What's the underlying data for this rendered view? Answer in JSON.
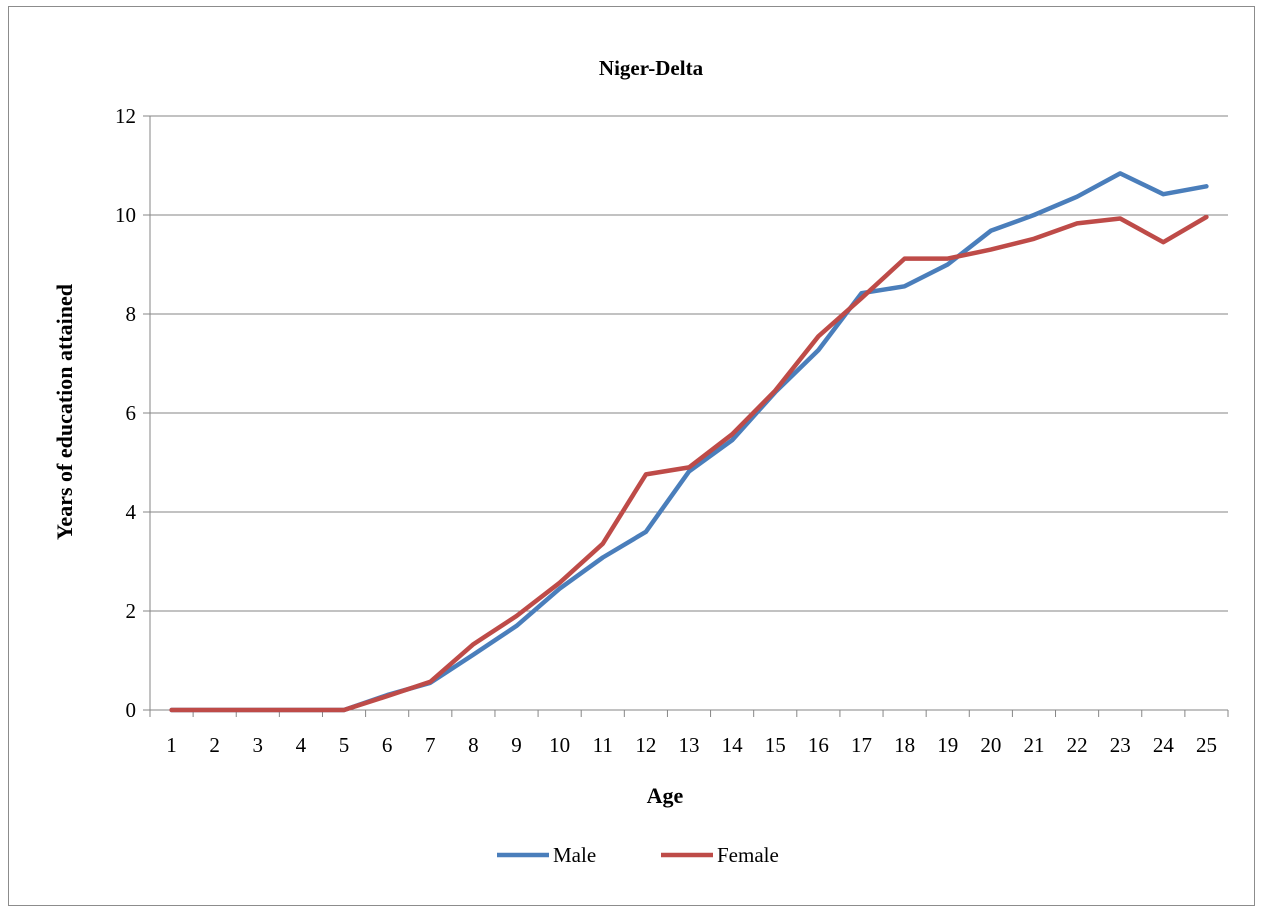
{
  "chart_data": {
    "type": "line",
    "title": "Niger-Delta",
    "xlabel": "Age",
    "ylabel": "Years of education attained",
    "x": [
      1,
      2,
      3,
      4,
      5,
      6,
      7,
      8,
      9,
      10,
      11,
      12,
      13,
      14,
      15,
      16,
      17,
      18,
      19,
      20,
      21,
      22,
      23,
      24,
      25
    ],
    "ylim": [
      0,
      12
    ],
    "yticks": [
      0,
      2,
      4,
      6,
      8,
      10,
      12
    ],
    "grid": true,
    "legend_position": "bottom",
    "series": [
      {
        "name": "Male",
        "color": "#4a7ebb",
        "values": [
          0,
          0,
          0,
          0,
          0,
          0.3,
          0.55,
          1.12,
          1.7,
          2.45,
          3.08,
          3.6,
          4.82,
          5.45,
          6.42,
          7.27,
          8.42,
          8.56,
          9.0,
          9.68,
          10.0,
          10.37,
          10.84,
          10.42,
          10.58
        ]
      },
      {
        "name": "Female",
        "color": "#be4b48",
        "values": [
          0,
          0,
          0,
          0,
          0,
          0.28,
          0.57,
          1.33,
          1.9,
          2.57,
          3.36,
          4.76,
          4.9,
          5.57,
          6.45,
          7.55,
          8.32,
          9.12,
          9.12,
          9.3,
          9.52,
          9.83,
          9.93,
          9.45,
          9.96
        ]
      }
    ]
  }
}
